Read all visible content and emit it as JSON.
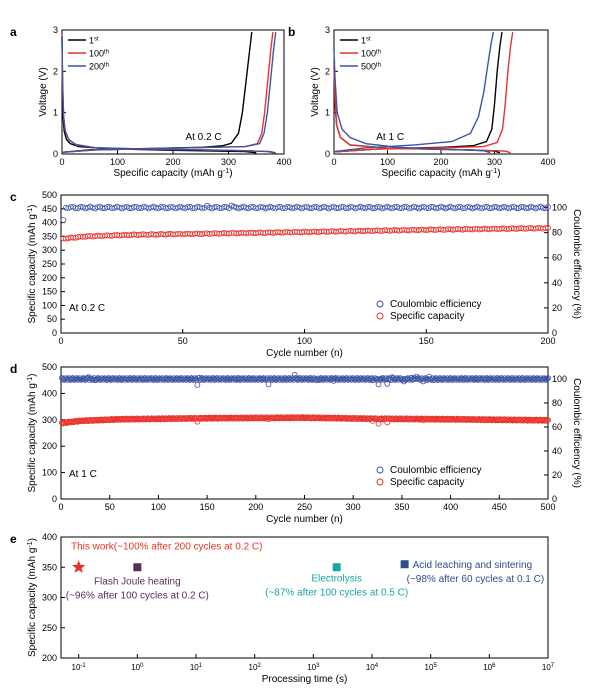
{
  "chart_data": [
    {
      "panel": "a",
      "type": "line",
      "ylabel": "Voltage (V)",
      "xlabel_parts": {
        "main": "Specific capacity (mAh g",
        "sup": "-1",
        "end": ")"
      },
      "xlim": [
        0,
        400
      ],
      "ylim": [
        0,
        3
      ],
      "xticks": [
        0,
        100,
        200,
        300,
        400
      ],
      "yticks": [
        0,
        1,
        2,
        3
      ],
      "annotation": "At 0.2 C",
      "legend": [
        {
          "base": "1",
          "sup": "st",
          "color": "#000000"
        },
        {
          "base": "100",
          "sup": "th",
          "color": "#e8332c"
        },
        {
          "base": "200",
          "sup": "th",
          "color": "#3c55a5"
        }
      ],
      "series": [
        {
          "color": "#000000",
          "discharge": [
            [
              0,
              2.85
            ],
            [
              1,
              1.6
            ],
            [
              2,
              0.9
            ],
            [
              4,
              0.55
            ],
            [
              8,
              0.35
            ],
            [
              15,
              0.25
            ],
            [
              30,
              0.18
            ],
            [
              80,
              0.13
            ],
            [
              200,
              0.09
            ],
            [
              330,
              0.06
            ],
            [
              350,
              0.03
            ]
          ],
          "charge": [
            [
              0,
              0.04
            ],
            [
              50,
              0.1
            ],
            [
              150,
              0.13
            ],
            [
              250,
              0.16
            ],
            [
              290,
              0.2
            ],
            [
              305,
              0.26
            ],
            [
              318,
              0.5
            ],
            [
              325,
              1.0
            ],
            [
              332,
              1.8
            ],
            [
              338,
              2.5
            ],
            [
              342,
              2.95
            ]
          ]
        },
        {
          "color": "#e8332c",
          "discharge": [
            [
              0,
              2.9
            ],
            [
              1,
              1.8
            ],
            [
              3,
              0.9
            ],
            [
              6,
              0.55
            ],
            [
              12,
              0.35
            ],
            [
              25,
              0.22
            ],
            [
              60,
              0.15
            ],
            [
              150,
              0.12
            ],
            [
              300,
              0.09
            ],
            [
              370,
              0.06
            ],
            [
              382,
              0.03
            ]
          ],
          "charge": [
            [
              0,
              0.04
            ],
            [
              60,
              0.1
            ],
            [
              200,
              0.14
            ],
            [
              330,
              0.18
            ],
            [
              352,
              0.25
            ],
            [
              360,
              0.5
            ],
            [
              365,
              1.0
            ],
            [
              371,
              1.8
            ],
            [
              376,
              2.5
            ],
            [
              380,
              2.95
            ]
          ]
        },
        {
          "color": "#3c55a5",
          "discharge": [
            [
              0,
              2.85
            ],
            [
              1,
              1.7
            ],
            [
              3,
              0.85
            ],
            [
              6,
              0.55
            ],
            [
              12,
              0.35
            ],
            [
              25,
              0.23
            ],
            [
              60,
              0.15
            ],
            [
              150,
              0.12
            ],
            [
              300,
              0.09
            ],
            [
              375,
              0.06
            ],
            [
              385,
              0.03
            ]
          ],
          "charge": [
            [
              0,
              0.04
            ],
            [
              60,
              0.1
            ],
            [
              200,
              0.14
            ],
            [
              330,
              0.18
            ],
            [
              356,
              0.25
            ],
            [
              364,
              0.5
            ],
            [
              370,
              1.0
            ],
            [
              376,
              1.8
            ],
            [
              381,
              2.5
            ],
            [
              385,
              2.95
            ]
          ]
        }
      ]
    },
    {
      "panel": "b",
      "type": "line",
      "ylabel": "Voltage (V)",
      "xlabel_parts": {
        "main": "Specific capacity (mAh g",
        "sup": "-1",
        "end": ")"
      },
      "xlim": [
        0,
        400
      ],
      "ylim": [
        0,
        3
      ],
      "xticks": [
        0,
        100,
        200,
        300,
        400
      ],
      "yticks": [
        0,
        1,
        2,
        3
      ],
      "annotation": "At 1 C",
      "legend": [
        {
          "base": "1",
          "sup": "st",
          "color": "#000000"
        },
        {
          "base": "100",
          "sup": "th",
          "color": "#e8332c"
        },
        {
          "base": "500",
          "sup": "th",
          "color": "#3c55a5"
        }
      ],
      "series": [
        {
          "color": "#000000",
          "discharge": [
            [
              0,
              2.1
            ],
            [
              2,
              1.2
            ],
            [
              5,
              0.7
            ],
            [
              12,
              0.4
            ],
            [
              30,
              0.22
            ],
            [
              100,
              0.14
            ],
            [
              250,
              0.1
            ],
            [
              300,
              0.07
            ],
            [
              310,
              0.03
            ]
          ],
          "charge": [
            [
              0,
              0.05
            ],
            [
              80,
              0.12
            ],
            [
              200,
              0.16
            ],
            [
              260,
              0.2
            ],
            [
              285,
              0.3
            ],
            [
              295,
              0.6
            ],
            [
              300,
              1.2
            ],
            [
              305,
              2.0
            ],
            [
              310,
              2.6
            ],
            [
              314,
              2.95
            ]
          ]
        },
        {
          "color": "#e8332c",
          "discharge": [
            [
              0,
              2.2
            ],
            [
              2,
              1.3
            ],
            [
              5,
              0.7
            ],
            [
              12,
              0.4
            ],
            [
              30,
              0.22
            ],
            [
              100,
              0.14
            ],
            [
              250,
              0.1
            ],
            [
              320,
              0.07
            ],
            [
              330,
              0.03
            ]
          ],
          "charge": [
            [
              0,
              0.05
            ],
            [
              80,
              0.12
            ],
            [
              200,
              0.15
            ],
            [
              280,
              0.18
            ],
            [
              305,
              0.28
            ],
            [
              315,
              0.6
            ],
            [
              320,
              1.2
            ],
            [
              325,
              2.0
            ],
            [
              330,
              2.6
            ],
            [
              334,
              2.95
            ]
          ]
        },
        {
          "color": "#3c55a5",
          "discharge": [
            [
              0,
              2.5
            ],
            [
              2,
              1.8
            ],
            [
              6,
              1.0
            ],
            [
              15,
              0.6
            ],
            [
              30,
              0.4
            ],
            [
              60,
              0.25
            ],
            [
              120,
              0.16
            ],
            [
              200,
              0.12
            ],
            [
              280,
              0.08
            ],
            [
              292,
              0.03
            ]
          ],
          "charge": [
            [
              0,
              0.06
            ],
            [
              60,
              0.15
            ],
            [
              150,
              0.22
            ],
            [
              220,
              0.3
            ],
            [
              255,
              0.5
            ],
            [
              270,
              0.9
            ],
            [
              280,
              1.5
            ],
            [
              288,
              2.2
            ],
            [
              294,
              2.7
            ],
            [
              298,
              2.95
            ]
          ]
        }
      ]
    },
    {
      "panel": "c",
      "type": "scatter",
      "xlabel": "Cycle number (n)",
      "ylabel_parts": {
        "main": "Specific capacity (mAh g",
        "sup": "-1",
        "end": ")"
      },
      "y2label": "Coulombic efficiency (%)",
      "xlim": [
        0,
        200
      ],
      "ylim": [
        0,
        500
      ],
      "y2lim": [
        0,
        110
      ],
      "xticks": [
        0,
        50,
        100,
        150,
        200
      ],
      "yticks": [
        0,
        50,
        100,
        150,
        200,
        250,
        300,
        350,
        400,
        450,
        500
      ],
      "y2ticks": [
        0,
        20,
        40,
        60,
        80,
        100
      ],
      "annotation": "At 0.2 C",
      "legend": [
        {
          "label": "Coulombic efficiency",
          "color": "#3c55a5"
        },
        {
          "label": "Specific capacity",
          "color": "#e8332c"
        }
      ],
      "series": [
        {
          "name": "Coulombic efficiency",
          "axis": "right",
          "color": "#3c55a5",
          "x_start": 1,
          "x_end": 200,
          "base": [
            [
              1,
              90
            ],
            [
              2,
              100
            ],
            [
              200,
              100
            ]
          ],
          "noise": 0.7,
          "outliers": [
            [
              1,
              90
            ],
            [
              60,
              101.5
            ],
            [
              70,
              101.5
            ]
          ]
        },
        {
          "name": "Specific capacity",
          "axis": "left",
          "color": "#e8332c",
          "x_start": 1,
          "x_end": 200,
          "base": [
            [
              1,
              342
            ],
            [
              10,
              350
            ],
            [
              30,
              356
            ],
            [
              60,
              360
            ],
            [
              100,
              366
            ],
            [
              150,
              374
            ],
            [
              200,
              380
            ]
          ],
          "noise": 1.5,
          "outliers": []
        }
      ]
    },
    {
      "panel": "d",
      "type": "scatter",
      "xlabel": "Cycle number (n)",
      "ylabel_parts": {
        "main": "Specific capacity (mAh g",
        "sup": "-1",
        "end": ")"
      },
      "y2label": "Coulombic efficiency (%)",
      "xlim": [
        0,
        500
      ],
      "ylim": [
        0,
        500
      ],
      "y2lim": [
        0,
        110
      ],
      "xticks": [
        0,
        50,
        100,
        150,
        200,
        250,
        300,
        350,
        400,
        450,
        500
      ],
      "yticks": [
        0,
        100,
        200,
        300,
        400,
        500
      ],
      "y2ticks": [
        0,
        20,
        40,
        60,
        80,
        100
      ],
      "annotation": "At 1 C",
      "legend": [
        {
          "label": "Coulombic efficiency",
          "color": "#3c55a5"
        },
        {
          "label": "Specific capacity",
          "color": "#e8332c"
        }
      ],
      "series": [
        {
          "name": "Coulombic efficiency",
          "axis": "right",
          "color": "#3c55a5",
          "x_start": 1,
          "x_end": 500,
          "base": [
            [
              1,
              100
            ],
            [
              500,
              100
            ]
          ],
          "noise": 0.8,
          "outliers": [
            [
              28,
              101.5
            ],
            [
              35,
              99
            ],
            [
              140,
              95
            ],
            [
              142,
              101
            ],
            [
              213,
              95.5
            ],
            [
              240,
              103.5
            ],
            [
              263,
              99
            ],
            [
              280,
              98.5
            ],
            [
              320,
              99
            ],
            [
              326,
              95.5
            ],
            [
              335,
              96
            ],
            [
              340,
              101.5
            ],
            [
              352,
              98
            ],
            [
              360,
              101
            ],
            [
              365,
              102
            ],
            [
              372,
              98
            ],
            [
              378,
              102
            ],
            [
              383,
              99
            ]
          ]
        },
        {
          "name": "Specific capacity",
          "axis": "left",
          "color": "#e8332c",
          "x_start": 1,
          "x_end": 500,
          "base": [
            [
              1,
              288
            ],
            [
              20,
              296
            ],
            [
              60,
              302
            ],
            [
              150,
              306
            ],
            [
              250,
              308
            ],
            [
              320,
              304
            ],
            [
              400,
              302
            ],
            [
              500,
              298
            ]
          ],
          "noise": 2.5,
          "outliers": [
            [
              140,
              293
            ],
            [
              213,
              302
            ],
            [
              320,
              296
            ],
            [
              326,
              285
            ],
            [
              335,
              290
            ],
            [
              352,
              305
            ],
            [
              372,
              298
            ]
          ]
        }
      ]
    },
    {
      "panel": "e",
      "type": "scatter",
      "xlabel": "Processing time (s)",
      "ylabel_parts": {
        "main": "Specific capacity (mAh g",
        "sup": "-1",
        "end": ")"
      },
      "xscale": "log",
      "xlim": [
        0.05,
        10000000
      ],
      "ylim": [
        200,
        400
      ],
      "xtick_exponents": [
        -1,
        0,
        1,
        2,
        3,
        4,
        5,
        6,
        7
      ],
      "yticks": [
        200,
        250,
        300,
        350,
        400
      ],
      "points": [
        {
          "x": 0.1,
          "y": 350,
          "marker": "star",
          "color": "#e8332c",
          "labels": [
            "This work(~100% after 200 cycles at 0.2 C)"
          ],
          "label_color": "#e8332c"
        },
        {
          "x": 1,
          "y": 350,
          "marker": "square",
          "color": "#5b2d56",
          "labels": [
            "Flash Joule heating",
            "(~96% after 100 cycles at 0.2 C)"
          ],
          "label_color": "#5b2d56"
        },
        {
          "x": 2500,
          "y": 350,
          "marker": "square",
          "color": "#1aa6a0",
          "labels": [
            "Electrolysis",
            "(~87% after 100 cycles at 0.5 C)"
          ],
          "label_color": "#1aa6a0"
        },
        {
          "x": 36000,
          "y": 355,
          "marker": "square",
          "color": "#2a4f8a",
          "labels": [
            "Acid leaching and sintering",
            "(~98% after 60 cycles at 0.1 C)"
          ],
          "label_color": "#2a4f8a"
        }
      ]
    }
  ]
}
